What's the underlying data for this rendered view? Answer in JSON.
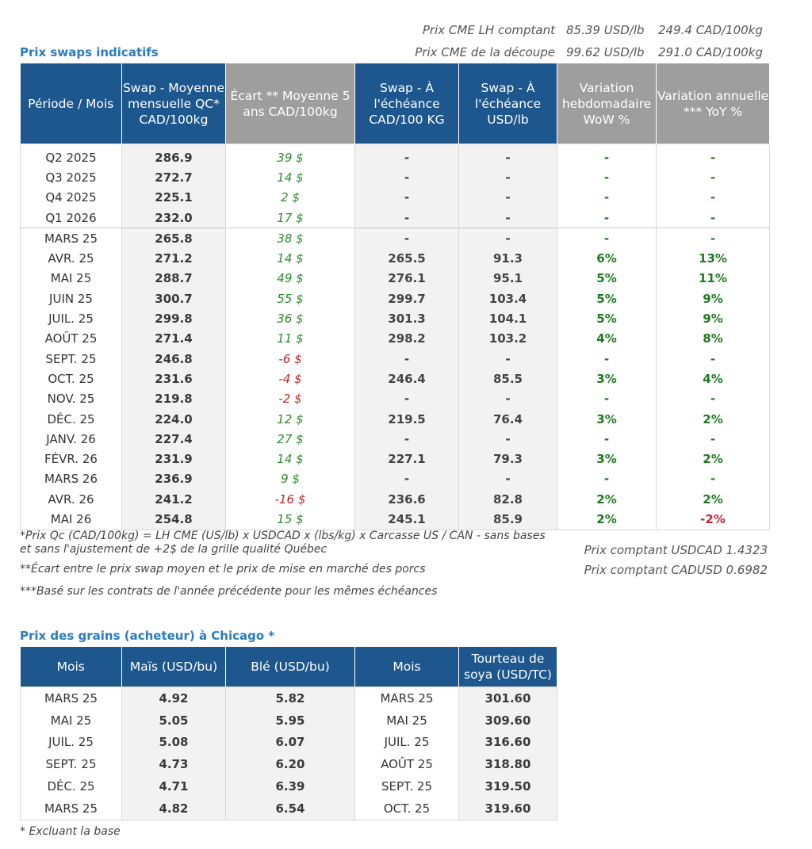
{
  "cme": {
    "rows": [
      {
        "label": "Prix CME LH comptant",
        "usd": "85.39 USD/lb",
        "cad": "249.4 CAD/100kg"
      },
      {
        "label": "Prix CME de la découpe",
        "usd": "99.62 USD/lb",
        "cad": "291.0 CAD/100kg"
      }
    ]
  },
  "swap_title": "Prix swaps indicatifs",
  "swap_headers": [
    "Période / Mois",
    "Swap - Moyenne mensuelle QC* CAD/100kg",
    "Écart ** Moyenne 5 ans CAD/100kg",
    "Swap - À l'échéance CAD/100 KG",
    "Swap - À l'échéance USD/lb",
    "Variation hebdomadaire WoW %",
    "Variation annuelle *** YoY %"
  ],
  "swap_rows": [
    {
      "p": "Q2 2025",
      "swap": "286.9",
      "ecart": "39 $",
      "ecart_sign": "pos",
      "cad": "-",
      "usd": "-",
      "wow": "-",
      "yoy": "-"
    },
    {
      "p": "Q3 2025",
      "swap": "272.7",
      "ecart": "14 $",
      "ecart_sign": "pos",
      "cad": "-",
      "usd": "-",
      "wow": "-",
      "yoy": "-"
    },
    {
      "p": "Q4 2025",
      "swap": "225.1",
      "ecart": "2 $",
      "ecart_sign": "pos",
      "cad": "-",
      "usd": "-",
      "wow": "-",
      "yoy": "-"
    },
    {
      "p": "Q1 2026",
      "swap": "232.0",
      "ecart": "17 $",
      "ecart_sign": "pos",
      "cad": "-",
      "usd": "-",
      "wow": "-",
      "yoy": "-"
    },
    {
      "p": "MARS 25",
      "swap": "265.8",
      "ecart": "38 $",
      "ecart_sign": "pos",
      "cad": "-",
      "usd": "-",
      "wow": "-",
      "yoy": "-"
    },
    {
      "p": "AVR. 25",
      "swap": "271.2",
      "ecart": "14 $",
      "ecart_sign": "pos",
      "cad": "265.5",
      "usd": "91.3",
      "wow": "6%",
      "yoy": "13%"
    },
    {
      "p": "MAI 25",
      "swap": "288.7",
      "ecart": "49 $",
      "ecart_sign": "pos",
      "cad": "276.1",
      "usd": "95.1",
      "wow": "5%",
      "yoy": "11%"
    },
    {
      "p": "JUIN 25",
      "swap": "300.7",
      "ecart": "55 $",
      "ecart_sign": "pos",
      "cad": "299.7",
      "usd": "103.4",
      "wow": "5%",
      "yoy": "9%"
    },
    {
      "p": "JUIL. 25",
      "swap": "299.8",
      "ecart": "36 $",
      "ecart_sign": "pos",
      "cad": "301.3",
      "usd": "104.1",
      "wow": "5%",
      "yoy": "9%"
    },
    {
      "p": "AOÛT 25",
      "swap": "271.4",
      "ecart": "11 $",
      "ecart_sign": "pos",
      "cad": "298.2",
      "usd": "103.2",
      "wow": "4%",
      "yoy": "8%"
    },
    {
      "p": "SEPT. 25",
      "swap": "246.8",
      "ecart": "-6 $",
      "ecart_sign": "neg",
      "cad": "-",
      "usd": "-",
      "wow": "-",
      "yoy": "-"
    },
    {
      "p": "OCT. 25",
      "swap": "231.6",
      "ecart": "-4 $",
      "ecart_sign": "neg",
      "cad": "246.4",
      "usd": "85.5",
      "wow": "3%",
      "yoy": "4%"
    },
    {
      "p": "NOV. 25",
      "swap": "219.8",
      "ecart": "-2 $",
      "ecart_sign": "neg",
      "cad": "-",
      "usd": "-",
      "wow": "-",
      "yoy": "-"
    },
    {
      "p": "DÉC. 25",
      "swap": "224.0",
      "ecart": "12 $",
      "ecart_sign": "pos",
      "cad": "219.5",
      "usd": "76.4",
      "wow": "3%",
      "yoy": "2%"
    },
    {
      "p": "JANV. 26",
      "swap": "227.4",
      "ecart": "27 $",
      "ecart_sign": "pos",
      "cad": "-",
      "usd": "-",
      "wow": "-",
      "yoy": "-"
    },
    {
      "p": "FÉVR. 26",
      "swap": "231.9",
      "ecart": "14 $",
      "ecart_sign": "pos",
      "cad": "227.1",
      "usd": "79.3",
      "wow": "3%",
      "yoy": "2%"
    },
    {
      "p": "MARS 26",
      "swap": "236.9",
      "ecart": "9 $",
      "ecart_sign": "pos",
      "cad": "-",
      "usd": "-",
      "wow": "-",
      "yoy": "-"
    },
    {
      "p": "AVR. 26",
      "swap": "241.2",
      "ecart": "-16 $",
      "ecart_sign": "neg",
      "cad": "236.6",
      "usd": "82.8",
      "wow": "2%",
      "yoy": "2%"
    },
    {
      "p": "MAI 26",
      "swap": "254.8",
      "ecart": "15 $",
      "ecart_sign": "pos",
      "cad": "245.1",
      "usd": "85.9",
      "wow": "2%",
      "yoy": "-2%"
    }
  ],
  "notes": {
    "n1": "*Prix Qc (CAD/100kg) = LH CME (US/lb) x USDCAD x (lbs/kg) x Carcasse US / CAN - sans bases et sans l'ajustement de +2$ de la grille qualité Québec",
    "n2": "**Écart entre le prix swap moyen et le prix de mise en marché des porcs",
    "n3": "***Basé sur les contrats de l'année précédente pour les mêmes échéances",
    "fx1": "Prix comptant USDCAD 1.4323",
    "fx2": "Prix comptant CADUSD 0.6982"
  },
  "grain_title": "Prix des grains (acheteur) à Chicago *",
  "grain_headers": [
    "Mois",
    "Maïs (USD/bu)",
    "Blé (USD/bu)",
    "Mois",
    "Tourteau de soya (USD/TC)"
  ],
  "grain_rows": [
    {
      "m1": "MARS 25",
      "mais": "4.92",
      "ble": "5.82",
      "m2": "MARS 25",
      "soya": "301.60"
    },
    {
      "m1": "MAI 25",
      "mais": "5.05",
      "ble": "5.95",
      "m2": "MAI 25",
      "soya": "309.60"
    },
    {
      "m1": "JUIL. 25",
      "mais": "5.08",
      "ble": "6.07",
      "m2": "JUIL. 25",
      "soya": "316.60"
    },
    {
      "m1": "SEPT. 25",
      "mais": "4.73",
      "ble": "6.20",
      "m2": "AOÛT 25",
      "soya": "318.80"
    },
    {
      "m1": "DÉC. 25",
      "mais": "4.71",
      "ble": "6.39",
      "m2": "SEPT. 25",
      "soya": "319.50"
    },
    {
      "m1": "MARS 25",
      "mais": "4.82",
      "ble": "6.54",
      "m2": "OCT. 25",
      "soya": "319.60"
    }
  ],
  "grain_note": "* Excluant la base",
  "colors": {
    "header_blue": "#1e578d",
    "header_gray": "#9e9e9e",
    "positive": "#2e8b2e",
    "negative": "#c0282d",
    "title_blue": "#2a7bbf"
  }
}
